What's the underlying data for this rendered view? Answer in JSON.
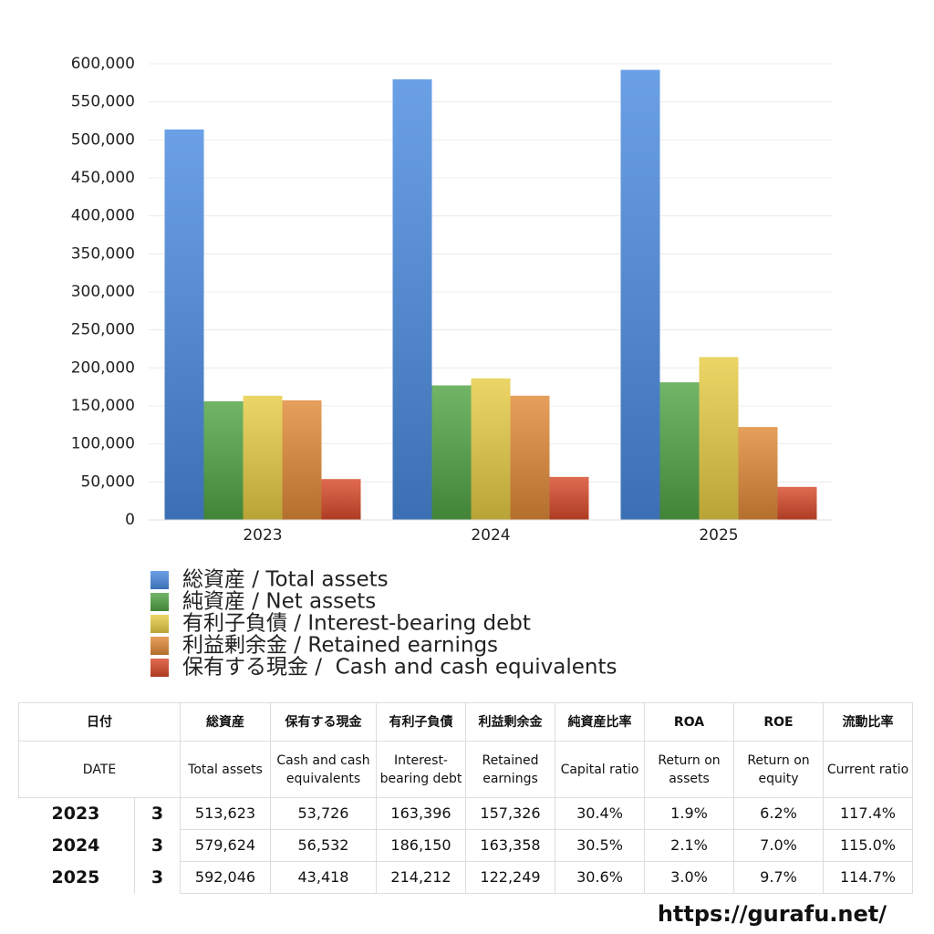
{
  "chart_data": {
    "type": "bar",
    "categories": [
      "2023",
      "2024",
      "2025"
    ],
    "series": [
      {
        "name": "総資産 / Total assets",
        "color": "#4a8be0",
        "values": [
          513623,
          579624,
          592046
        ]
      },
      {
        "name": "純資産 / Net assets",
        "color": "#52a445",
        "values": [
          156000,
          177000,
          181000
        ]
      },
      {
        "name": "有利子負債 / Interest-bearing debt",
        "color": "#e6cc44",
        "values": [
          163396,
          186150,
          214212
        ]
      },
      {
        "name": "利益剰余金 / Retained earnings",
        "color": "#e08a38",
        "values": [
          157326,
          163358,
          122249
        ]
      },
      {
        "name": "保有する現金 /  Cash and cash equivalents",
        "color": "#d84a2a",
        "values": [
          53726,
          56532,
          43418
        ]
      }
    ],
    "ylim": [
      0,
      600000
    ],
    "yticks": [
      0,
      {
        "value": 50000,
        "label": "50,000"
      },
      {
        "value": 100000,
        "label": "100,000"
      },
      {
        "value": 150000,
        "label": "150,000"
      },
      {
        "value": 200000,
        "label": "200,000"
      },
      {
        "value": 250000,
        "label": "250,000"
      },
      {
        "value": 300000,
        "label": "300,000"
      },
      {
        "value": 350000,
        "label": "350,000"
      },
      {
        "value": 400000,
        "label": "400,000"
      },
      {
        "value": 450000,
        "label": "450,000"
      },
      {
        "value": 500000,
        "label": "500,000"
      },
      {
        "value": 550000,
        "label": "550,000"
      },
      {
        "value": 600000,
        "label": "600,000"
      }
    ],
    "grid": true
  },
  "table": {
    "header": [
      "日付",
      "総資産",
      "保有する現金",
      "有利子負債",
      "利益剰余金",
      "純資産比率",
      "ROA",
      "ROE",
      "流動比率"
    ],
    "subheader": [
      "DATE",
      "Total assets",
      "Cash and cash equivalents",
      "Interest-bearing debt",
      "Retained earnings",
      "Capital ratio",
      "Return on assets",
      "Return on equity",
      "Current ratio"
    ],
    "rows": [
      [
        "2023",
        "3",
        "513,623",
        "53,726",
        "163,396",
        "157,326",
        "30.4%",
        "1.9%",
        "6.2%",
        "117.4%"
      ],
      [
        "2024",
        "3",
        "579,624",
        "56,532",
        "186,150",
        "163,358",
        "30.5%",
        "2.1%",
        "7.0%",
        "115.0%"
      ],
      [
        "2025",
        "3",
        "592,046",
        "43,418",
        "214,212",
        "122,249",
        "30.6%",
        "3.0%",
        "9.7%",
        "114.7%"
      ]
    ]
  },
  "footer": "https://gurafu.net/"
}
